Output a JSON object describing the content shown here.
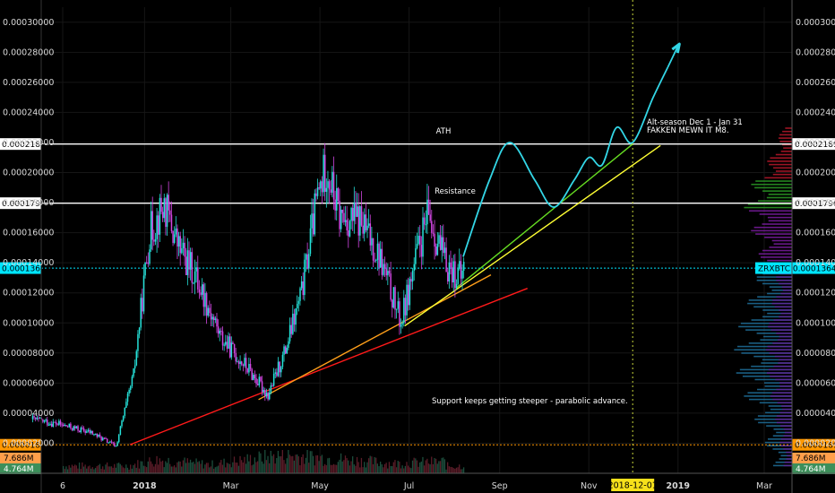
{
  "chart_data": {
    "type": "candlestick",
    "symbol": "ZRXBTC",
    "y_scale": "linear",
    "ylim": [
      0,
      0.00031
    ],
    "y_ticks": [
      "0.00002000",
      "0.00004000",
      "0.00006000",
      "0.00008000",
      "0.00010000",
      "0.00012000",
      "0.00014000",
      "0.00016000",
      "0.00018000",
      "0.00020000",
      "0.00022000",
      "0.00024000",
      "0.00026000",
      "0.00028000",
      "0.00030000"
    ],
    "x_ticks": [
      {
        "label": "6",
        "date": "2017-11-06"
      },
      {
        "label": "2018",
        "date": "2018-01-01"
      },
      {
        "label": "Mar",
        "date": "2018-03-01"
      },
      {
        "label": "May",
        "date": "2018-05-01"
      },
      {
        "label": "Jul",
        "date": "2018-07-01"
      },
      {
        "label": "Sep",
        "date": "2018-09-01"
      },
      {
        "label": "Nov",
        "date": "2018-11-01"
      },
      {
        "label": "2019",
        "date": "2019-01-01"
      },
      {
        "label": "Mar",
        "date": "2019-03-01"
      }
    ],
    "crosshair_date_label": "2018-12-01",
    "price_series": [
      {
        "date": "2017-10-15",
        "close": 3.6e-05
      },
      {
        "date": "2017-11-01",
        "close": 3.3e-05
      },
      {
        "date": "2017-11-25",
        "close": 2.7e-05
      },
      {
        "date": "2017-12-12",
        "close": 1.8e-05
      },
      {
        "date": "2017-12-24",
        "close": 6.5e-05
      },
      {
        "date": "2018-01-04",
        "close": 0.00016
      },
      {
        "date": "2018-01-14",
        "close": 0.000178
      },
      {
        "date": "2018-01-24",
        "close": 0.00015
      },
      {
        "date": "2018-02-05",
        "close": 0.00013
      },
      {
        "date": "2018-02-22",
        "close": 9e-05
      },
      {
        "date": "2018-03-12",
        "close": 7e-05
      },
      {
        "date": "2018-03-26",
        "close": 5.2e-05
      },
      {
        "date": "2018-04-07",
        "close": 8.2e-05
      },
      {
        "date": "2018-04-18",
        "close": 0.00012
      },
      {
        "date": "2018-04-28",
        "close": 0.00018
      },
      {
        "date": "2018-05-05",
        "close": 0.000205
      },
      {
        "date": "2018-05-14",
        "close": 0.00017
      },
      {
        "date": "2018-05-28",
        "close": 0.000168
      },
      {
        "date": "2018-06-10",
        "close": 0.000145
      },
      {
        "date": "2018-06-25",
        "close": 0.0001
      },
      {
        "date": "2018-07-05",
        "close": 0.000142
      },
      {
        "date": "2018-07-14",
        "close": 0.000172
      },
      {
        "date": "2018-07-25",
        "close": 0.00014
      },
      {
        "date": "2018-08-05",
        "close": 0.00013
      },
      {
        "date": "2018-08-07",
        "close": 0.0001365
      }
    ],
    "volume_series": [
      {
        "date": "2017-12-20",
        "volume_m": 3.0
      },
      {
        "date": "2018-01-10",
        "volume_m": 5.5
      },
      {
        "date": "2018-02-15",
        "volume_m": 3.5
      },
      {
        "date": "2018-04-05",
        "volume_m": 7.5
      },
      {
        "date": "2018-05-10",
        "volume_m": 6.0
      },
      {
        "date": "2018-06-20",
        "volume_m": 4.0
      },
      {
        "date": "2018-07-25",
        "volume_m": 4.8
      }
    ],
    "horizontal_lines": [
      {
        "price": 0.00021898,
        "label": "0.00021898",
        "color": "#ffffff",
        "note": "ATH"
      },
      {
        "price": 0.00017963,
        "label": "0.00017963",
        "color": "#ffffff",
        "note": "Resistance"
      },
      {
        "price": 0.00013648,
        "label": "0.00013648",
        "color": "#00e5ff",
        "note": ""
      },
      {
        "price": 1.896e-05,
        "label": "0.00001896",
        "color": "#ff9800",
        "note": ""
      }
    ],
    "trendlines": [
      {
        "color": "#ff1a1a",
        "from": {
          "date": "2017-12-22",
          "price": 1.9e-05
        },
        "to": {
          "date": "2018-09-20",
          "price": 0.000123
        }
      },
      {
        "color": "#ff9f1a",
        "from": {
          "date": "2018-03-20",
          "price": 4.9e-05
        },
        "to": {
          "date": "2018-08-26",
          "price": 0.000132
        }
      },
      {
        "color": "#ffff33",
        "from": {
          "date": "2018-06-28",
          "price": 9.8e-05
        },
        "to": {
          "date": "2018-12-20",
          "price": 0.000218
        }
      },
      {
        "color": "#66dd22",
        "from": {
          "date": "2018-08-02",
          "price": 0.000123
        },
        "to": {
          "date": "2018-12-01",
          "price": 0.000219
        }
      }
    ],
    "projection_path": [
      {
        "date": "2018-08-07",
        "price": 0.000144
      },
      {
        "date": "2018-08-25",
        "price": 0.000195
      },
      {
        "date": "2018-09-08",
        "price": 0.00022
      },
      {
        "date": "2018-09-25",
        "price": 0.000195
      },
      {
        "date": "2018-10-08",
        "price": 0.000177
      },
      {
        "date": "2018-10-22",
        "price": 0.000195
      },
      {
        "date": "2018-11-01",
        "price": 0.00021
      },
      {
        "date": "2018-11-10",
        "price": 0.000205
      },
      {
        "date": "2018-11-20",
        "price": 0.00023
      },
      {
        "date": "2018-12-01",
        "price": 0.00022
      },
      {
        "date": "2018-12-15",
        "price": 0.00025
      },
      {
        "date": "2018-12-25",
        "price": 0.00027
      }
    ],
    "annotations": [
      {
        "text": "ATH"
      },
      {
        "text": "Resistance"
      },
      {
        "text": "Alt-season Dec 1 - Jan 31"
      },
      {
        "text": "FAKKEN MEWN IT M8."
      },
      {
        "text": "Support keeps getting steeper - parabolic advance."
      }
    ],
    "volume_labels": [
      "7.686M",
      "4.764M"
    ],
    "colors": {
      "up": "#25e0d8",
      "down": "#d046e0",
      "grid": "#161616"
    }
  }
}
